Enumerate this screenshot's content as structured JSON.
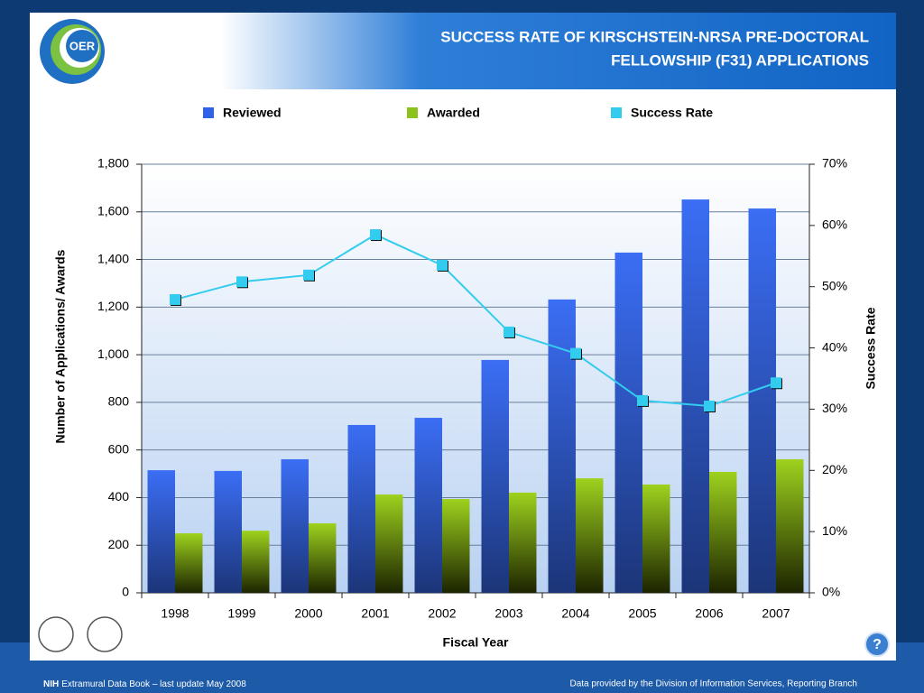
{
  "logo": "OER",
  "chart_data": {
    "type": "bar",
    "title": [
      "SUCCESS RATE OF KIRSCHSTEIN-NRSA PRE-DOCTORAL",
      "FELLOWSHIP (F31) APPLICATIONS"
    ],
    "x_label": "Fiscal Year",
    "y_label": "Number of Applications/ Awards",
    "y2_label": "Success Rate",
    "categories": [
      "1998",
      "1999",
      "2000",
      "2001",
      "2002",
      "2003",
      "2004",
      "2005",
      "2006",
      "2007"
    ],
    "series": [
      {
        "name": "Reviewed",
        "color": "#2f62e8",
        "values": [
          515,
          512,
          561,
          705,
          735,
          978,
          1232,
          1429,
          1652,
          1614
        ]
      },
      {
        "name": "Awarded",
        "color": "#8cc21c",
        "values": [
          250,
          261,
          292,
          413,
          394,
          421,
          481,
          455,
          508,
          561
        ]
      },
      {
        "name": "Success Rate",
        "color": "#33ccee",
        "axis": "y2",
        "values": [
          47.9,
          50.8,
          51.9,
          58.5,
          53.5,
          42.6,
          39.1,
          31.4,
          30.5,
          34.3
        ]
      }
    ],
    "ylim": [
      0,
      1800
    ],
    "yticks": [
      0,
      200,
      400,
      600,
      800,
      {
        "value": 1000,
        "label": "1,000"
      },
      {
        "value": 1200,
        "label": "1,200"
      },
      {
        "value": 1400,
        "label": "1,400"
      },
      {
        "value": 1600,
        "label": "1,600"
      },
      {
        "value": 1800,
        "label": "1,800"
      }
    ],
    "y2lim": [
      0,
      70
    ],
    "y2ticks": [
      {
        "value": 0,
        "label": "0%"
      },
      {
        "value": 10,
        "label": "10%"
      },
      {
        "value": 20,
        "label": "20%"
      },
      {
        "value": 30,
        "label": "30%"
      },
      {
        "value": 40,
        "label": "40%"
      },
      {
        "value": 50,
        "label": "50%"
      },
      {
        "value": 60,
        "label": "60%"
      },
      {
        "value": 70,
        "label": "70%"
      }
    ],
    "grid": true,
    "legend": "top"
  },
  "footer": {
    "left_bold": "NIH",
    "left": "Extramural Data Book – last update May 2008",
    "right": "Data provided by the Division of Information Services, Reporting Branch"
  },
  "help": "?"
}
